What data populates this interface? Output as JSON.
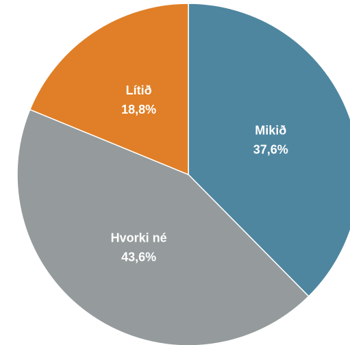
{
  "chart_data": {
    "type": "pie",
    "categories": [
      "Mikið",
      "Hvorki né",
      "Lítið"
    ],
    "values": [
      37.6,
      43.6,
      18.8
    ],
    "value_labels": [
      "37,6%",
      "43,6%",
      "18,8%"
    ],
    "colors": [
      "#4e86a0",
      "#959b9c",
      "#e07f27"
    ]
  }
}
